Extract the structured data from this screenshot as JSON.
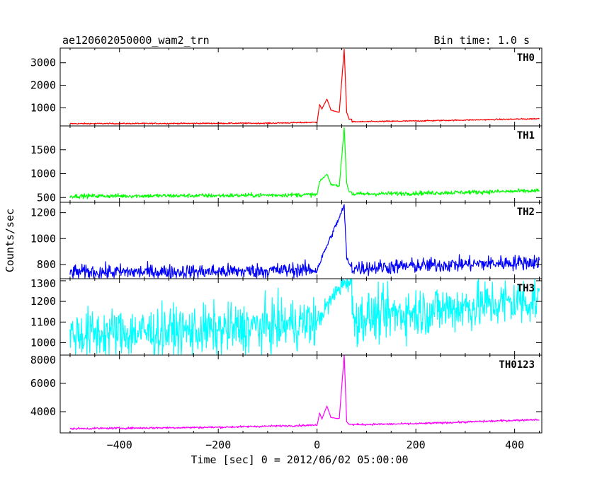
{
  "header": {
    "title": "ae120602050000_wam2_trn",
    "bin_time": "Bin time: 1.0 s"
  },
  "axes": {
    "xlabel": "Time [sec] 0 = 2012/06/02 05:00:00",
    "ylabel": "Counts/sec"
  },
  "chart_data": {
    "type": "line",
    "title": "ae120602050000_wam2_trn",
    "xlabel": "Time [sec] 0 = 2012/06/02 05:00:00",
    "ylabel": "Counts/sec",
    "xlim": [
      -520,
      455
    ],
    "xticks": [
      -400,
      -200,
      0,
      200,
      400
    ],
    "x_range": [
      -500,
      450
    ],
    "bin_time_s": 1.0,
    "grid": false,
    "panels": [
      {
        "name": "TH0",
        "color": "#ff0000",
        "ylim": [
          200,
          3650
        ],
        "yticks": [
          1000,
          2000,
          3000
        ],
        "base": [
          [
            -500,
            300
          ],
          [
            -300,
            310
          ],
          [
            -100,
            320
          ],
          [
            0,
            360
          ],
          [
            200,
            420
          ],
          [
            450,
            520
          ]
        ],
        "noise": 22,
        "features": [
          [
            5,
            1150
          ],
          [
            10,
            950
          ],
          [
            20,
            1400
          ],
          [
            28,
            900
          ],
          [
            45,
            800
          ],
          [
            55,
            3600
          ],
          [
            60,
            800
          ],
          [
            65,
            500
          ]
        ]
      },
      {
        "name": "TH1",
        "color": "#00ff00",
        "ylim": [
          400,
          2000
        ],
        "yticks": [
          500,
          1000,
          1500
        ],
        "base": [
          [
            -500,
            530
          ],
          [
            -200,
            540
          ],
          [
            0,
            560
          ],
          [
            200,
            590
          ],
          [
            450,
            640
          ]
        ],
        "noise": 35,
        "features": [
          [
            5,
            830
          ],
          [
            20,
            990
          ],
          [
            28,
            780
          ],
          [
            45,
            740
          ],
          [
            55,
            1960
          ],
          [
            60,
            800
          ],
          [
            65,
            620
          ]
        ]
      },
      {
        "name": "TH2",
        "color": "#0000ff",
        "ylim": [
          690,
          1280
        ],
        "yticks": [
          800,
          1000,
          1200
        ],
        "base": [
          [
            -500,
            740
          ],
          [
            -200,
            745
          ],
          [
            0,
            760
          ],
          [
            200,
            790
          ],
          [
            450,
            820
          ]
        ],
        "noise": 45,
        "features": [
          [
            15,
            900
          ],
          [
            55,
            1250
          ],
          [
            60,
            850
          ],
          [
            65,
            800
          ]
        ]
      },
      {
        "name": "TH3",
        "color": "#00ffff",
        "ylim": [
          940,
          1310
        ],
        "yticks": [
          1000,
          1100,
          1200,
          1300
        ],
        "base": [
          [
            -500,
            1040
          ],
          [
            -200,
            1060
          ],
          [
            0,
            1100
          ],
          [
            200,
            1150
          ],
          [
            450,
            1210
          ]
        ],
        "noise": 95,
        "features": [
          [
            55,
            1300
          ]
        ]
      },
      {
        "name": "TH0123",
        "color": "#ff00ff",
        "ylim": [
          2500,
          8000
        ],
        "yticks": [
          4000,
          6000,
          8000
        ],
        "base": [
          [
            -500,
            2800
          ],
          [
            -200,
            2900
          ],
          [
            0,
            3050
          ],
          [
            200,
            3150
          ],
          [
            450,
            3450
          ]
        ],
        "noise": 55,
        "features": [
          [
            5,
            3900
          ],
          [
            10,
            3500
          ],
          [
            20,
            4400
          ],
          [
            28,
            3600
          ],
          [
            45,
            3500
          ],
          [
            55,
            8000
          ],
          [
            60,
            3300
          ],
          [
            65,
            3100
          ]
        ]
      }
    ]
  }
}
